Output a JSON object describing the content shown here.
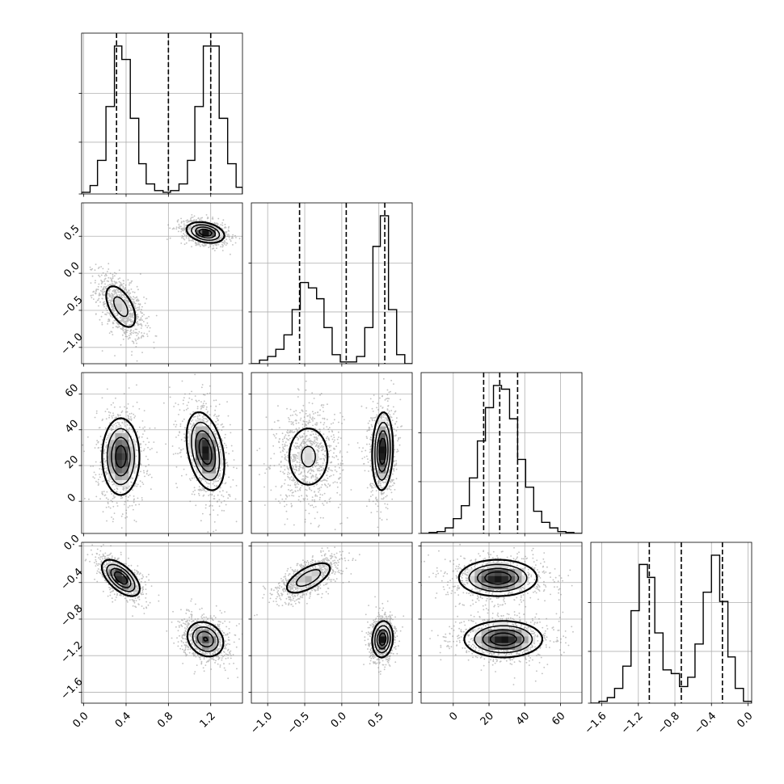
{
  "chart_data": {
    "type": "corner",
    "grid": true,
    "variables": [
      {
        "id": "p0",
        "range": [
          -0.02,
          1.5
        ],
        "ticks": [
          0.0,
          0.4,
          0.8,
          1.2
        ],
        "tick_labels": [
          "0.0",
          "0.4",
          "0.8",
          "1.2"
        ],
        "quantiles": [
          0.31,
          0.8,
          1.2
        ],
        "hist_bins": [
          -0.02,
          0.06,
          0.13,
          0.21,
          0.29,
          0.36,
          0.44,
          0.52,
          0.59,
          0.67,
          0.75,
          0.82,
          0.9,
          0.98,
          1.05,
          1.13,
          1.21,
          1.28,
          1.36,
          1.44,
          1.5
        ],
        "hist_counts": [
          0.01,
          0.05,
          0.2,
          0.52,
          0.88,
          0.8,
          0.45,
          0.18,
          0.06,
          0.02,
          0.01,
          0.02,
          0.06,
          0.2,
          0.52,
          0.88,
          0.88,
          0.45,
          0.18,
          0.04
        ]
      },
      {
        "id": "p1",
        "range": [
          -1.22,
          0.95
        ],
        "ticks": [
          -1.0,
          -0.5,
          0.0,
          0.5
        ],
        "tick_labels": [
          "−1.0",
          "−0.5",
          "0.0",
          "0.5"
        ],
        "quantiles": [
          -0.57,
          0.06,
          0.58
        ],
        "hist_bins": [
          -1.22,
          -1.11,
          -1.0,
          -0.89,
          -0.78,
          -0.67,
          -0.56,
          -0.45,
          -0.34,
          -0.24,
          -0.13,
          -0.02,
          0.09,
          0.2,
          0.31,
          0.42,
          0.52,
          0.63,
          0.74,
          0.85,
          0.95
        ],
        "hist_counts": [
          0.0,
          0.02,
          0.04,
          0.08,
          0.16,
          0.3,
          0.45,
          0.42,
          0.36,
          0.2,
          0.05,
          0.01,
          0.01,
          0.04,
          0.2,
          0.65,
          0.82,
          0.3,
          0.05,
          0.0
        ]
      },
      {
        "id": "p2",
        "range": [
          -18,
          72
        ],
        "ticks": [
          0,
          20,
          40,
          60
        ],
        "tick_labels": [
          "0",
          "20",
          "40",
          "60"
        ],
        "quantiles": [
          17,
          26,
          36
        ],
        "hist_bins": [
          -18,
          -13.5,
          -9,
          -4.5,
          0,
          4.5,
          9,
          13.5,
          18,
          22.5,
          27,
          31.5,
          36,
          40.5,
          45,
          49.5,
          54,
          58.5,
          63,
          67.5,
          72
        ],
        "hist_counts": [
          0.0,
          0.005,
          0.01,
          0.03,
          0.08,
          0.15,
          0.3,
          0.5,
          0.68,
          0.8,
          0.78,
          0.62,
          0.4,
          0.25,
          0.12,
          0.06,
          0.03,
          0.01,
          0.005,
          0.0
        ]
      },
      {
        "id": "p3",
        "range": [
          -1.72,
          0.04
        ],
        "ticks": [
          -1.6,
          -1.2,
          -0.8,
          -0.4,
          0.0
        ],
        "tick_labels": [
          "−1.6",
          "−1.2",
          "−0.8",
          "−0.4",
          "0.0"
        ],
        "quantiles": [
          -1.08,
          -0.73,
          -0.28
        ],
        "hist_bins": [
          -1.72,
          -1.63,
          -1.54,
          -1.46,
          -1.37,
          -1.28,
          -1.19,
          -1.1,
          -1.02,
          -0.93,
          -0.84,
          -0.75,
          -0.66,
          -0.58,
          -0.49,
          -0.4,
          -0.31,
          -0.22,
          -0.14,
          -0.05,
          0.04
        ],
        "hist_counts": [
          0.0,
          0.01,
          0.03,
          0.08,
          0.2,
          0.5,
          0.75,
          0.68,
          0.38,
          0.18,
          0.16,
          0.09,
          0.14,
          0.32,
          0.6,
          0.8,
          0.55,
          0.25,
          0.08,
          0.01
        ]
      }
    ],
    "clusters": [
      {
        "mean": [
          0.35,
          -0.45,
          25,
          -0.35
        ],
        "std": [
          0.09,
          0.18,
          11,
          0.1
        ],
        "corr": [
          [
            1,
            -0.55,
            0,
            -0.6
          ],
          [
            -0.55,
            1,
            0,
            0.65
          ],
          [
            0,
            0,
            1,
            0
          ],
          [
            -0.6,
            0.65,
            0,
            1
          ]
        ]
      },
      {
        "mean": [
          1.15,
          0.55,
          28,
          -1.02
        ],
        "std": [
          0.09,
          0.07,
          11,
          0.1
        ],
        "corr": [
          [
            1,
            -0.3,
            -0.35,
            -0.2
          ],
          [
            -0.3,
            1,
            0.1,
            0.1
          ],
          [
            -0.35,
            0.1,
            1,
            0
          ],
          [
            -0.2,
            0.1,
            0,
            1
          ]
        ]
      }
    ]
  }
}
